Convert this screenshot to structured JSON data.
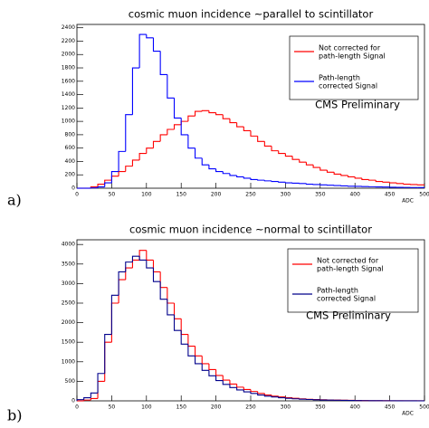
{
  "chart_data": [
    {
      "type": "histogram",
      "panel_label": "a)",
      "title": "cosmic muon incidence ~parallel to scintillator",
      "x_label": "ADC",
      "annotation": "CMS Preliminary",
      "bins": [
        0,
        10,
        20,
        30,
        40,
        50,
        60,
        70,
        80,
        90,
        100,
        110,
        120,
        130,
        140,
        150,
        160,
        170,
        180,
        190,
        200,
        210,
        220,
        230,
        240,
        250,
        260,
        270,
        280,
        290,
        300,
        310,
        320,
        330,
        340,
        350,
        360,
        370,
        380,
        390,
        400,
        410,
        420,
        430,
        440,
        450,
        460,
        470,
        480,
        490,
        500
      ],
      "series": [
        {
          "name": "Not corrected for\npath-length Signal",
          "color": "#ff0000",
          "values": [
            0,
            0,
            20,
            60,
            120,
            180,
            250,
            330,
            420,
            520,
            600,
            700,
            800,
            880,
            950,
            1000,
            1080,
            1150,
            1160,
            1130,
            1100,
            1040,
            980,
            920,
            860,
            780,
            700,
            630,
            560,
            520,
            480,
            430,
            390,
            350,
            310,
            270,
            240,
            210,
            190,
            170,
            150,
            130,
            120,
            100,
            90,
            80,
            70,
            60,
            55,
            50
          ]
        },
        {
          "name": "Path-length\ncorrected Signal",
          "color": "#0000ff",
          "values": [
            0,
            0,
            5,
            20,
            80,
            250,
            550,
            1100,
            1800,
            2300,
            2250,
            2050,
            1700,
            1350,
            1050,
            800,
            600,
            450,
            350,
            290,
            250,
            220,
            190,
            170,
            150,
            130,
            120,
            110,
            100,
            90,
            80,
            75,
            70,
            60,
            55,
            50,
            45,
            40,
            35,
            30,
            28,
            25,
            22,
            20,
            18,
            15,
            13,
            12,
            10,
            10
          ]
        }
      ],
      "xlim": [
        0,
        500
      ],
      "xticks": [
        0,
        50,
        100,
        150,
        200,
        250,
        300,
        350,
        400,
        450,
        500
      ],
      "ylim": [
        0,
        2450
      ],
      "yticks": [
        0,
        200,
        400,
        600,
        800,
        1000,
        1200,
        1400,
        1600,
        1800,
        2000,
        2200,
        2400
      ]
    },
    {
      "type": "histogram",
      "panel_label": "b)",
      "title": "cosmic muon incidence ~normal to scintillator",
      "x_label": "ADC",
      "annotation": "CMS Preliminary",
      "bins": [
        0,
        10,
        20,
        30,
        40,
        50,
        60,
        70,
        80,
        90,
        100,
        110,
        120,
        130,
        140,
        150,
        160,
        170,
        180,
        190,
        200,
        210,
        220,
        230,
        240,
        250,
        260,
        270,
        280,
        290,
        300,
        310,
        320,
        330,
        340,
        350,
        360,
        370,
        380,
        390,
        400,
        410,
        420,
        430,
        440,
        450,
        460,
        470,
        480,
        490,
        500
      ],
      "series": [
        {
          "name": "Not corrected for\npath-length Signal",
          "color": "#ff0000",
          "values": [
            0,
            20,
            60,
            500,
            1500,
            2500,
            3100,
            3400,
            3600,
            3850,
            3600,
            3300,
            2900,
            2500,
            2100,
            1700,
            1400,
            1150,
            950,
            800,
            650,
            530,
            430,
            350,
            290,
            240,
            190,
            150,
            120,
            100,
            80,
            65,
            50,
            40,
            35,
            28,
            22,
            18,
            15,
            12,
            10,
            8,
            6,
            5,
            4,
            3,
            3,
            2,
            2,
            1
          ]
        },
        {
          "name": "Path-length\ncorrected Signal",
          "color": "#00008b",
          "values": [
            30,
            80,
            200,
            700,
            1700,
            2700,
            3300,
            3550,
            3700,
            3600,
            3400,
            3050,
            2600,
            2200,
            1800,
            1450,
            1150,
            950,
            780,
            640,
            520,
            420,
            340,
            280,
            230,
            190,
            150,
            120,
            100,
            80,
            65,
            52,
            42,
            35,
            28,
            22,
            18,
            15,
            12,
            10,
            8,
            6,
            5,
            4,
            3,
            3,
            2,
            2,
            1,
            1
          ]
        }
      ],
      "xlim": [
        0,
        500
      ],
      "xticks": [
        0,
        50,
        100,
        150,
        200,
        250,
        300,
        350,
        400,
        450,
        500
      ],
      "ylim": [
        0,
        4120
      ],
      "yticks": [
        0,
        500,
        1000,
        1500,
        2000,
        2500,
        3000,
        3500,
        4000
      ]
    }
  ]
}
